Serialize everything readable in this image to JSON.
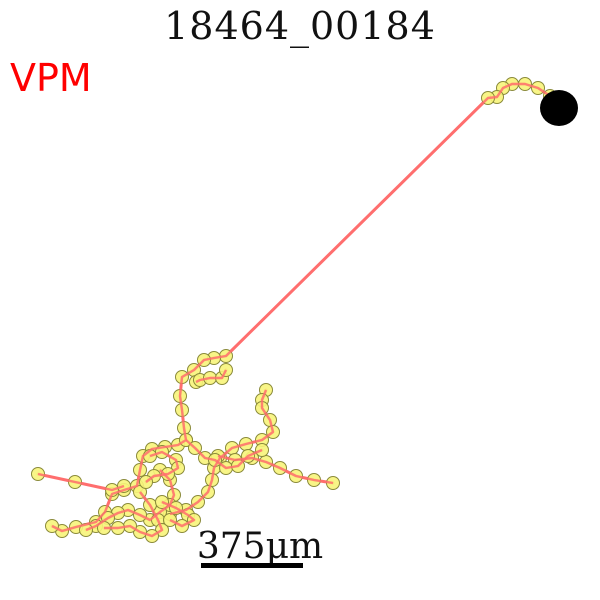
{
  "title": "18464_00184",
  "region_label": "VPM",
  "scale_bar": {
    "label": "375μm"
  },
  "colors": {
    "region": "#ff0000",
    "branch": "#ff6f6f",
    "node_fill": "#f7f47a",
    "node_stroke": "#8a8a3a",
    "soma": "#000000"
  }
}
